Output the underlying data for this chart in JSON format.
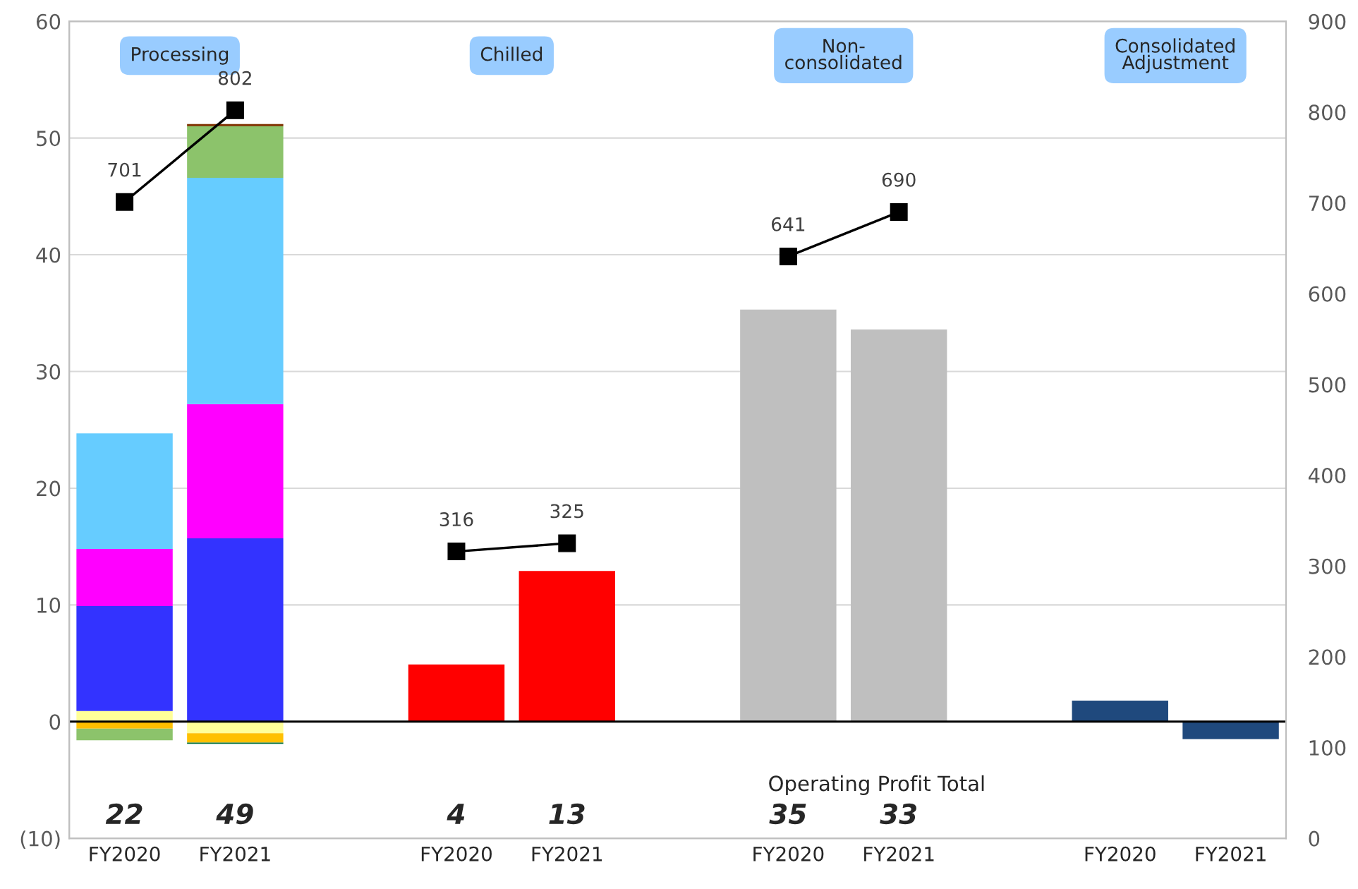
{
  "chart_data": {
    "type": "bar",
    "stacked": true,
    "categories": [
      "FY2020",
      "FY2021",
      null,
      "FY2020",
      "FY2021",
      null,
      "FY2020",
      "FY2021",
      null,
      "FY2020",
      "FY2021"
    ],
    "series": [
      {
        "color": "#ffff99",
        "values": [
          0.9,
          -1.0,
          null,
          null,
          null,
          null,
          null,
          null,
          null,
          null,
          null
        ]
      },
      {
        "color": "#ffc000",
        "values": [
          -0.6,
          -0.8,
          null,
          null,
          null,
          null,
          null,
          null,
          null,
          null,
          null
        ]
      },
      {
        "color": "#3333ff",
        "values": [
          9.0,
          15.7,
          null,
          null,
          null,
          null,
          null,
          null,
          null,
          null,
          null
        ]
      },
      {
        "color": "#ff00ff",
        "values": [
          4.9,
          11.5,
          null,
          null,
          null,
          null,
          null,
          null,
          null,
          null,
          null
        ]
      },
      {
        "color": "#66ccff",
        "values": [
          9.9,
          19.4,
          null,
          null,
          null,
          null,
          null,
          null,
          null,
          null,
          null
        ]
      },
      {
        "color": "#8cc36b",
        "values": [
          -1.0,
          4.4,
          null,
          null,
          null,
          null,
          null,
          null,
          null,
          null,
          null
        ]
      },
      {
        "color": "#00703c",
        "values": [
          null,
          -0.1,
          null,
          null,
          null,
          null,
          null,
          null,
          null,
          null,
          null
        ]
      },
      {
        "color": "#843c0c",
        "values": [
          null,
          0.2,
          null,
          null,
          null,
          null,
          null,
          null,
          null,
          null,
          null
        ]
      },
      {
        "color": "#ff0000",
        "values": [
          null,
          null,
          null,
          4.9,
          12.9,
          null,
          null,
          null,
          null,
          null,
          null
        ]
      },
      {
        "color": "#bfbfbf",
        "values": [
          null,
          null,
          null,
          null,
          null,
          null,
          35.3,
          33.6,
          null,
          null,
          null
        ]
      },
      {
        "color": "#1f497d",
        "values": [
          null,
          null,
          null,
          null,
          null,
          null,
          null,
          null,
          null,
          1.8,
          -1.5
        ]
      },
      {
        "type": "line",
        "axis": "y2",
        "color": "#000000",
        "values": [
          701,
          802,
          null,
          316,
          325,
          null,
          641,
          690,
          null,
          null,
          null
        ],
        "value_labels": [
          "701",
          "802",
          null,
          "316",
          "325",
          null,
          "641",
          "690",
          null,
          null,
          null
        ]
      }
    ],
    "totals": [
      "22",
      "49",
      null,
      "4",
      "13",
      null,
      "35",
      "33",
      null,
      null,
      null
    ],
    "ylim": [
      -10,
      60
    ],
    "yticks": [
      {
        "value": -10,
        "label": "(10)"
      },
      0,
      10,
      20,
      30,
      40,
      50,
      60
    ],
    "y2lim": [
      0,
      900
    ],
    "y2ticks": [
      0,
      100,
      200,
      300,
      400,
      500,
      600,
      700,
      800,
      900
    ],
    "ref_lines": [
      {
        "axis": "y",
        "value": 0,
        "color": "#000000"
      }
    ],
    "grid": "y",
    "marker": "square",
    "annotations": [
      "Processing",
      "Chilled",
      "Non-\nconsolidated",
      "Consolidated\nAdjustment",
      "Operating Profit Total"
    ]
  }
}
